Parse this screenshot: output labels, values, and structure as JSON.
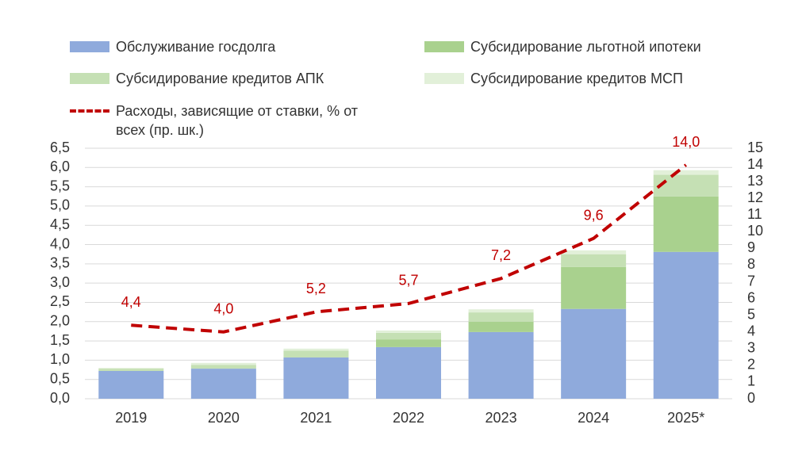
{
  "chart_data": {
    "type": "bar",
    "categories": [
      "2019",
      "2020",
      "2021",
      "2022",
      "2023",
      "2024",
      "2025*"
    ],
    "series": [
      {
        "name": "Обслуживание госдолга",
        "type": "bar",
        "color": "#8faadc",
        "values": [
          0.72,
          0.78,
          1.07,
          1.34,
          1.73,
          2.33,
          3.81
        ]
      },
      {
        "name": "Субсидирование льготной ипотеки",
        "type": "bar",
        "color": "#a9d18e",
        "values": [
          0,
          0,
          0,
          0.2,
          0.27,
          1.09,
          1.44
        ]
      },
      {
        "name": "Субсидирование кредитов АПК",
        "type": "bar",
        "color": "#c5e0b4",
        "values": [
          0.06,
          0.1,
          0.18,
          0.17,
          0.24,
          0.33,
          0.56
        ]
      },
      {
        "name": "Субсидирование кредитов МСП",
        "type": "bar",
        "color": "#e2f0d9",
        "values": [
          0.02,
          0.05,
          0.05,
          0.06,
          0.08,
          0.1,
          0.12
        ]
      },
      {
        "name": "Расходы, зависящие от ставки, % от всех (пр. шк.)",
        "type": "line",
        "axis": "y2",
        "color": "#c00000",
        "dashed": true,
        "values": [
          4.4,
          4.0,
          5.2,
          5.7,
          7.2,
          9.6,
          14.0
        ],
        "value_labels": [
          "4,4",
          "4,0",
          "5,2",
          "5,7",
          "7,2",
          "9,6",
          "14,0"
        ]
      }
    ],
    "ylim": [
      0,
      6.5
    ],
    "yticks": [
      {
        "value": 0,
        "label": "0,0"
      },
      {
        "value": 0.5,
        "label": "0,5"
      },
      {
        "value": 1,
        "label": "1,0"
      },
      {
        "value": 1.5,
        "label": "1,5"
      },
      {
        "value": 2,
        "label": "2,0"
      },
      {
        "value": 2.5,
        "label": "2,5"
      },
      {
        "value": 3,
        "label": "3,0"
      },
      {
        "value": 3.5,
        "label": "3,5"
      },
      {
        "value": 4,
        "label": "4,0"
      },
      {
        "value": 4.5,
        "label": "4,5"
      },
      {
        "value": 5,
        "label": "5,0"
      },
      {
        "value": 5.5,
        "label": "5,5"
      },
      {
        "value": 6,
        "label": "6,0"
      },
      {
        "value": 6.5,
        "label": "6,5"
      }
    ],
    "y2lim": [
      0,
      15
    ],
    "y2ticks": [
      0,
      1,
      2,
      3,
      4,
      5,
      6,
      7,
      8,
      9,
      10,
      11,
      12,
      13,
      14,
      15
    ],
    "grid": true
  }
}
